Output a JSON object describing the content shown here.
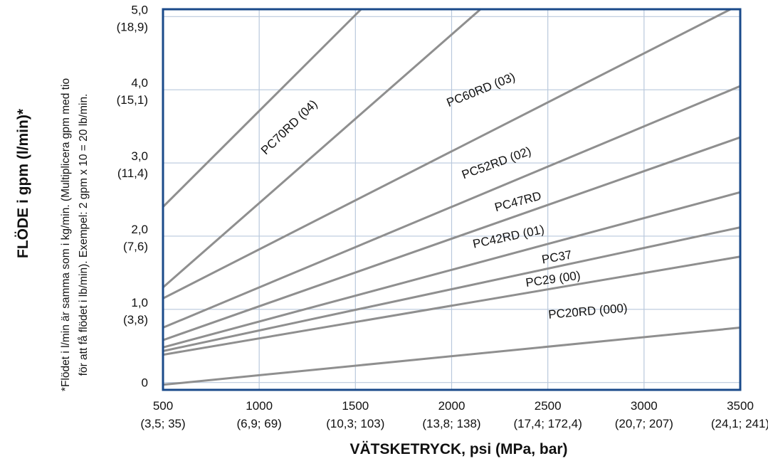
{
  "chart_data": {
    "type": "line",
    "xlabel": "VÄTSKETRYCK, psi (MPa, bar)",
    "ylabel": "FLÖDE i gpm (l/min)*",
    "note_lines": [
      "*Flödet i l/min är samma som i kg/min. (Multiplicera gpm med tio",
      "för att få flödet i lb/min). Exempel: 2 gpm x 10 = 20 lb/min."
    ],
    "xlim": [
      500,
      3500
    ],
    "ylim": [
      -0.1,
      5.1
    ],
    "grid": true,
    "x_ticks": [
      {
        "value": 500,
        "label": "500",
        "sublabel": "(3,5; 35)"
      },
      {
        "value": 1000,
        "label": "1000",
        "sublabel": "(6,9; 69)"
      },
      {
        "value": 1500,
        "label": "1500",
        "sublabel": "(10,3; 103)"
      },
      {
        "value": 2000,
        "label": "2000",
        "sublabel": "(13,8; 138)"
      },
      {
        "value": 2500,
        "label": "2500",
        "sublabel": "(17,4; 172,4)"
      },
      {
        "value": 3000,
        "label": "3000",
        "sublabel": "(20,7; 207)"
      },
      {
        "value": 3500,
        "label": "3500",
        "sublabel": "(24,1; 241)"
      }
    ],
    "y_ticks": [
      {
        "value": 0,
        "label": "0",
        "sublabel": ""
      },
      {
        "value": 1,
        "label": "1,0",
        "sublabel": "(3,8)"
      },
      {
        "value": 2,
        "label": "2,0",
        "sublabel": "(7,6)"
      },
      {
        "value": 3,
        "label": "3,0",
        "sublabel": "(11,4)"
      },
      {
        "value": 4,
        "label": "4,0",
        "sublabel": "(15,1)"
      },
      {
        "value": 5,
        "label": "5,0",
        "sublabel": "(18,9)"
      }
    ],
    "series": [
      {
        "name": "PC70RD (04)",
        "x": [
          500,
          1530
        ],
        "y": [
          2.4,
          5.1
        ]
      },
      {
        "name": "PC60RD (03)",
        "x": [
          500,
          2150
        ],
        "y": [
          1.3,
          5.1
        ]
      },
      {
        "name": "PC52RD (02)",
        "x": [
          500,
          3450
        ],
        "y": [
          1.15,
          5.1
        ]
      },
      {
        "name": "PC47RD",
        "x": [
          500,
          3500
        ],
        "y": [
          0.75,
          4.05
        ]
      },
      {
        "name": "PC42RD (01)",
        "x": [
          500,
          3500
        ],
        "y": [
          0.58,
          3.35
        ]
      },
      {
        "name": "PC37",
        "x": [
          500,
          3500
        ],
        "y": [
          0.48,
          2.6
        ]
      },
      {
        "name": "PC29 (00)",
        "x": [
          500,
          3500
        ],
        "y": [
          0.43,
          2.12
        ]
      },
      {
        "name": "PC20RD (000)",
        "x": [
          500,
          3500
        ],
        "y": [
          0.38,
          1.72
        ]
      },
      {
        "name": "",
        "x": [
          500,
          3500
        ],
        "y": [
          -0.03,
          0.75
        ]
      }
    ],
    "line_labels": [
      {
        "text": "PC70RD (04)",
        "x": 1170,
        "y": 3.45,
        "angle": -44
      },
      {
        "text": "PC60RD (03)",
        "x": 2160,
        "y": 3.95,
        "angle": -22
      },
      {
        "text": "PC52RD (02)",
        "x": 2240,
        "y": 2.95,
        "angle": -20
      },
      {
        "text": "PC47RD",
        "x": 2350,
        "y": 2.42,
        "angle": -15
      },
      {
        "text": "PC42RD (01)",
        "x": 2300,
        "y": 1.94,
        "angle": -12
      },
      {
        "text": "PC37",
        "x": 2550,
        "y": 1.66,
        "angle": -10
      },
      {
        "text": "PC29 (00)",
        "x": 2530,
        "y": 1.36,
        "angle": -8
      },
      {
        "text": "PC20RD (000)",
        "x": 2710,
        "y": 0.92,
        "angle": -5
      }
    ],
    "colors": {
      "frame": "#1a4a8a",
      "grid": "#b9c8dc",
      "line": "#8f8f8f"
    }
  }
}
